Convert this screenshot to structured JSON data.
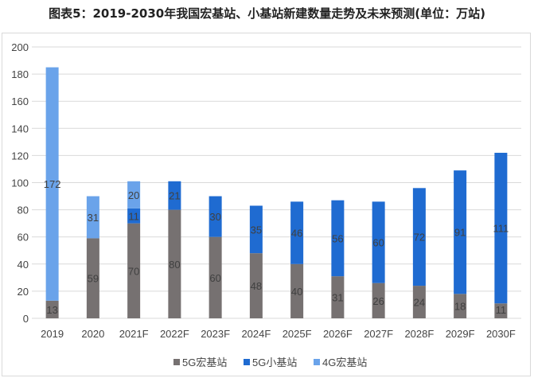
{
  "title": "图表5：2019-2030年我国宏基站、小基站新建数量走势及未来预测(单位：万站)",
  "chart_data": {
    "type": "bar",
    "stacked": true,
    "title": "图表5：2019-2030年我国宏基站、小基站新建数量走势及未来预测(单位：万站)",
    "categories": [
      "2019",
      "2020",
      "2021F",
      "2022F",
      "2023F",
      "2024F",
      "2025F",
      "2026F",
      "2027F",
      "2028F",
      "2029F",
      "2030F"
    ],
    "series": [
      {
        "name": "5G宏基站",
        "color": "#767171",
        "values": [
          13,
          59,
          70,
          80,
          60,
          48,
          40,
          31,
          26,
          24,
          18,
          11
        ]
      },
      {
        "name": "5G小基站",
        "color": "#1f6bd1",
        "values": [
          0,
          0,
          11,
          21,
          30,
          35,
          46,
          56,
          60,
          72,
          91,
          111
        ]
      },
      {
        "name": "4G宏基站",
        "color": "#6aa3ea",
        "values": [
          172,
          31,
          20,
          0,
          0,
          0,
          0,
          0,
          0,
          0,
          0,
          0
        ]
      }
    ],
    "ylim": [
      0,
      200
    ],
    "yticks": [
      0,
      20,
      40,
      60,
      80,
      100,
      120,
      140,
      160,
      180,
      200
    ],
    "grid": true,
    "legend": "bottom"
  }
}
